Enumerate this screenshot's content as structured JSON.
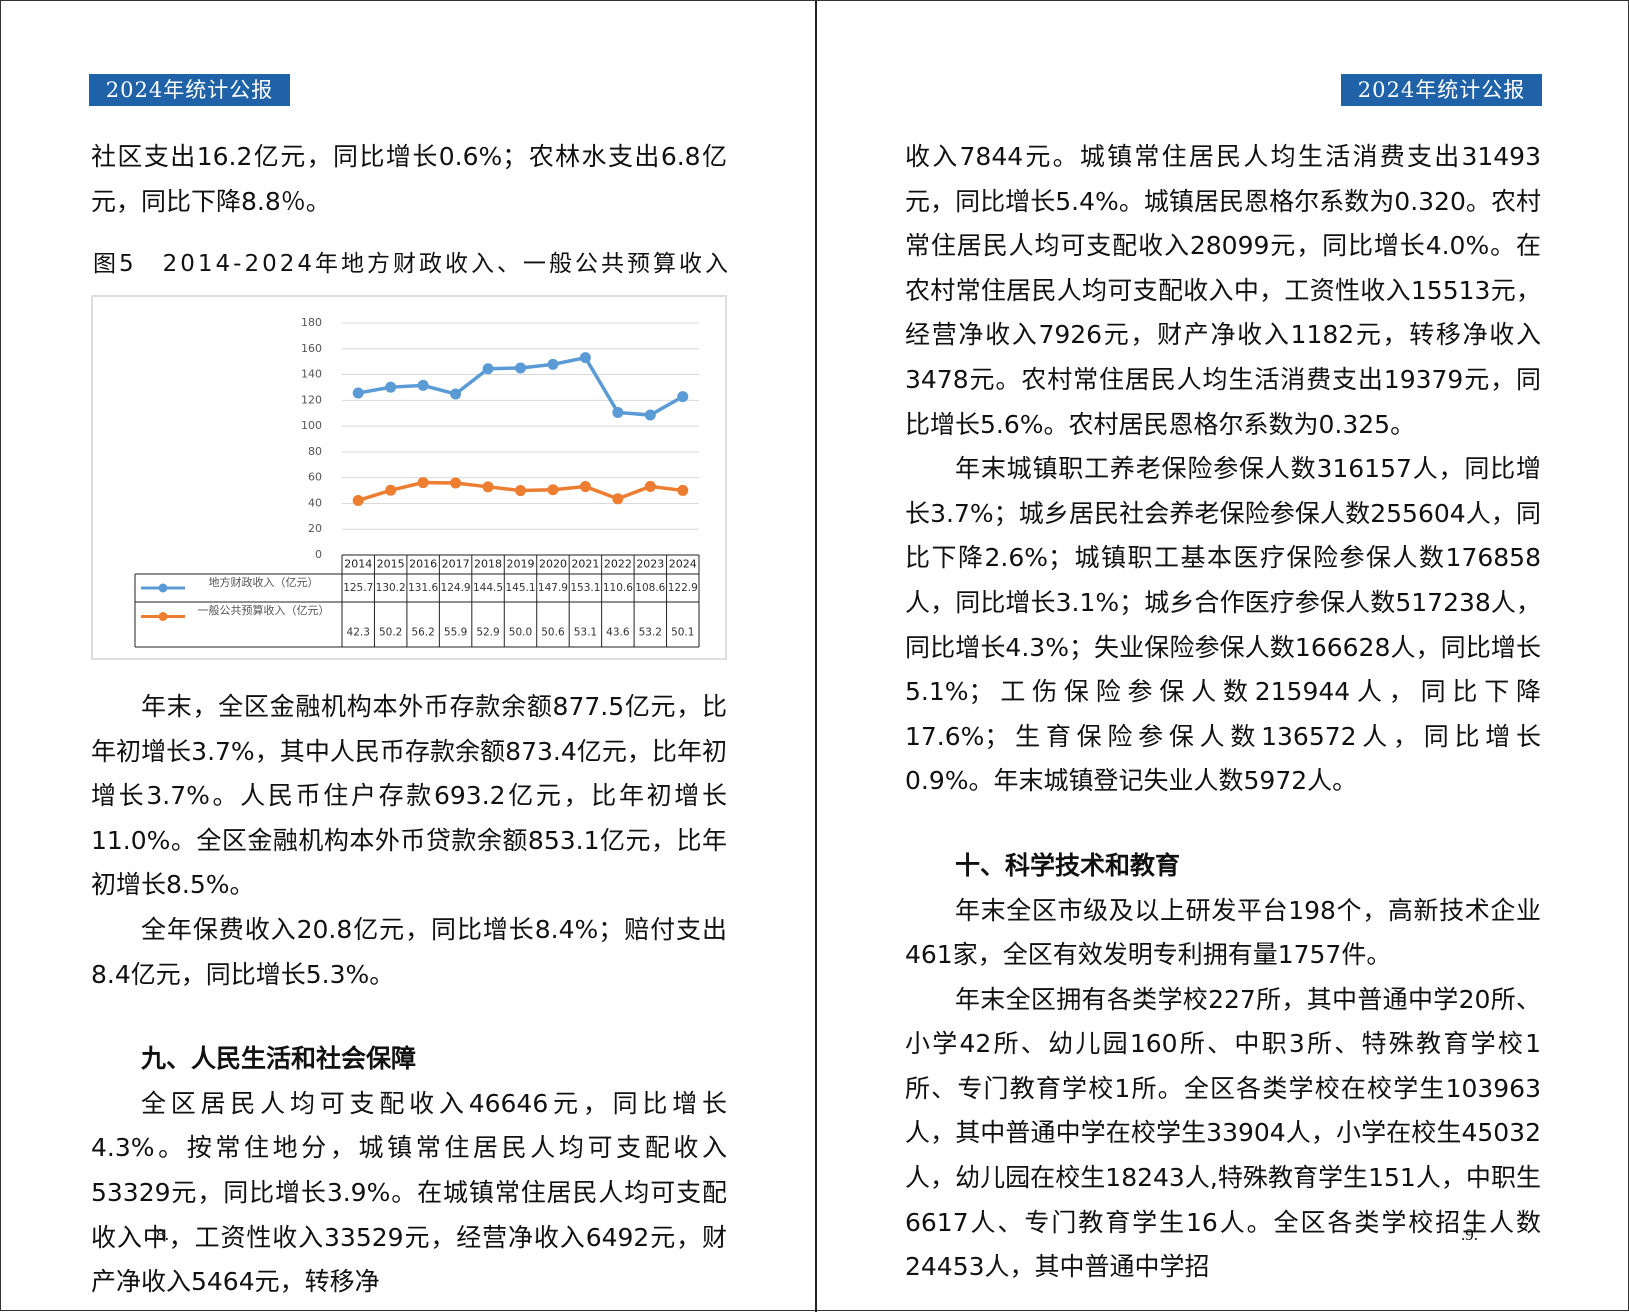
{
  "pages": [
    {
      "header": "2024年统计公报",
      "blocks": [
        "社区支出16.2亿元，同比增长0.6%；农林水支出6.8亿元，同比下降8.8％。",
        "年末，全区金融机构本外币存款余额877.5亿元，比年初增长3.7%，其中人民币存款余额873.4亿元，比年初增长3.7%。人民币住户存款693.2亿元，比年初增长11.0%。全区金融机构本外币贷款余额853.1亿元，比年初增长8.5%。",
        "全年保费收入20.8亿元，同比增长8.4%；赔付支出8.4亿元，同比增长5.3%。",
        "九、人民生活和社会保障",
        "全区居民人均可支配收入46646元，同比增长4.3%。按常住地分，城镇常住居民人均可支配收入53329元，同比增长3.9%。在城镇常住居民人均可支配收入中，工资性收入33529元，经营净收入6492元，财产净收入5464元，转移净"
      ],
      "page_number": ".8."
    },
    {
      "header": "2024年统计公报",
      "blocks": [
        "收入7844元。城镇常住居民人均生活消费支出31493元，同比增长5.4%。城镇居民恩格尔系数为0.320。农村常住居民人均可支配收入28099元，同比增长4.0%。在农村常住居民人均可支配收入中，工资性收入15513元，经营净收入7926元，财产净收入1182元，转移净收入3478元。农村常住居民人均生活消费支出19379元，同比增长5.6%。农村居民恩格尔系数为0.325。",
        "年末城镇职工养老保险参保人数316157人，同比增长3.7%；城乡居民社会养老保险参保人数255604人，同比下降2.6%；城镇职工基本医疗保险参保人数176858人，同比增长3.1%；城乡合作医疗参保人数517238人，同比增长4.3%；失业保险参保人数166628人，同比增长5.1%；工伤保险参保人数215944人，同比下降17.6%；生育保险参保人数136572人，同比增长0.9%。年末城镇登记失业人数5972人。",
        "十、科学技术和教育",
        "年末全区市级及以上研发平台198个，高新技术企业461家，全区有效发明专利拥有量1757件。",
        "年末全区拥有各类学校227所，其中普通中学20所、小学42所、幼儿园160所、中职3所、特殊教育学校1所、专门教育学校1所。全区各类学校在校学生103963人，其中普通中学在校学生33904人，小学在校生45032人，幼儿园在校生18243人,特殊教育学生151人，中职生6617人、专门教育学生16人。全区各类学校招生人数24453人，其中普通中学招"
      ],
      "page_number": ".9."
    }
  ],
  "chart_data": {
    "type": "line",
    "title": "图5　2014-2024年地方财政收入、一般公共预算收入",
    "categories": [
      "2014",
      "2015",
      "2016",
      "2017",
      "2018",
      "2019",
      "2020",
      "2021",
      "2022",
      "2023",
      "2024"
    ],
    "series": [
      {
        "name": "地方财政收入（亿元）",
        "color": "#5b9bd5",
        "values": [
          125.7,
          130.2,
          131.6,
          124.9,
          144.5,
          145.1,
          147.9,
          153.1,
          110.6,
          108.6,
          122.9
        ]
      },
      {
        "name": "一般公共预算收入（亿元）",
        "color": "#ed7d31",
        "values": [
          42.3,
          50.2,
          56.2,
          55.9,
          52.9,
          50.0,
          50.6,
          53.1,
          43.6,
          53.2,
          50.1
        ],
        "value_labels": [
          "42.3",
          "50.2",
          "56.2",
          "55.9",
          "52.9",
          "50.0",
          "50.6",
          "53.1",
          "43.6",
          "53.2",
          "50.1"
        ]
      }
    ],
    "ylim": [
      0,
      180
    ],
    "yticks": [
      0,
      20,
      40,
      60,
      80,
      100,
      120,
      140,
      160,
      180
    ],
    "grid": true
  }
}
